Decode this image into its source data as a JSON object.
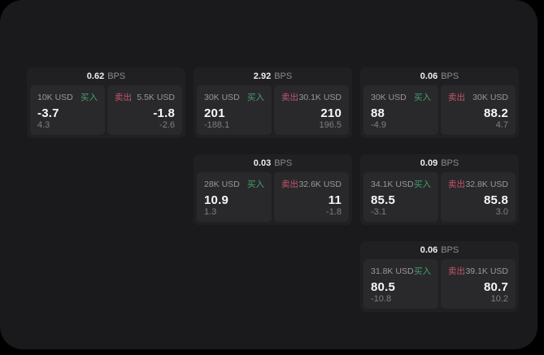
{
  "colors": {
    "buy_accent": "#44a06c",
    "sell_accent": "#c4556a",
    "page_background": "#1a1a1c",
    "card_background": "#202023",
    "panel_background": "#29292c"
  },
  "cards": [
    {
      "grid": {
        "row": 1,
        "col": 1
      },
      "bps": "0.62",
      "bps_unit": "BPS",
      "buy": {
        "amount": "10K USD",
        "side": "买入",
        "value": "-3.7",
        "sub": "4.3"
      },
      "sell": {
        "side": "卖出",
        "amount": "5.5K USD",
        "value": "-1.8",
        "sub": "-2.6"
      }
    },
    {
      "grid": {
        "row": 1,
        "col": 2
      },
      "bps": "2.92",
      "bps_unit": "BPS",
      "buy": {
        "amount": "30K USD",
        "side": "买入",
        "value": "201",
        "sub": "-188.1"
      },
      "sell": {
        "side": "卖出",
        "amount": "30.1K USD",
        "value": "210",
        "sub": "196.5"
      }
    },
    {
      "grid": {
        "row": 1,
        "col": 3
      },
      "bps": "0.06",
      "bps_unit": "BPS",
      "buy": {
        "amount": "30K USD",
        "side": "买入",
        "value": "88",
        "sub": "-4.9"
      },
      "sell": {
        "side": "卖出",
        "amount": "30K USD",
        "value": "88.2",
        "sub": "4.7"
      }
    },
    {
      "grid": {
        "row": 2,
        "col": 2
      },
      "bps": "0.03",
      "bps_unit": "BPS",
      "buy": {
        "amount": "28K USD",
        "side": "买入",
        "value": "10.9",
        "sub": "1.3"
      },
      "sell": {
        "side": "卖出",
        "amount": "32.6K USD",
        "value": "11",
        "sub": "-1.8"
      }
    },
    {
      "grid": {
        "row": 2,
        "col": 3
      },
      "bps": "0.09",
      "bps_unit": "BPS",
      "buy": {
        "amount": "34.1K USD",
        "side": "买入",
        "value": "85.5",
        "sub": "-3.1"
      },
      "sell": {
        "side": "卖出",
        "amount": "32.8K USD",
        "value": "85.8",
        "sub": "3.0"
      }
    },
    {
      "grid": {
        "row": 3,
        "col": 3
      },
      "bps": "0.06",
      "bps_unit": "BPS",
      "buy": {
        "amount": "31.8K USD",
        "side": "买入",
        "value": "80.5",
        "sub": "-10.8"
      },
      "sell": {
        "side": "卖出",
        "amount": "39.1K USD",
        "value": "80.7",
        "sub": "10.2"
      }
    }
  ]
}
